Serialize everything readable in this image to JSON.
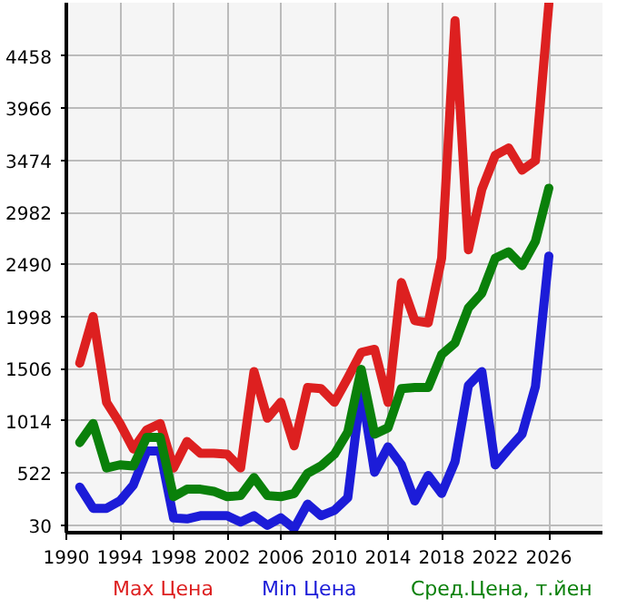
{
  "chart_data": {
    "type": "line",
    "x": [
      1991,
      1992,
      1993,
      1994,
      1995,
      1996,
      1997,
      1998,
      1999,
      2000,
      2001,
      2002,
      2003,
      2004,
      2005,
      2006,
      2007,
      2008,
      2009,
      2010,
      2011,
      2012,
      2013,
      2014,
      2015,
      2016,
      2017,
      2018,
      2019,
      2020,
      2021,
      2022,
      2023,
      2024,
      2025,
      2026
    ],
    "series": [
      {
        "name": "Max Цена",
        "color": "#dd2020",
        "values": [
          1560,
          2000,
          1190,
          990,
          750,
          930,
          990,
          570,
          820,
          710,
          710,
          700,
          570,
          1480,
          1040,
          1190,
          780,
          1330,
          1320,
          1190,
          1420,
          1660,
          1690,
          1190,
          2320,
          1960,
          1940,
          2550,
          4790,
          2630,
          3200,
          3520,
          3590,
          3380,
          3470,
          4950
        ]
      },
      {
        "name": "Min Цена",
        "color": "#1c1cd8",
        "values": [
          390,
          190,
          190,
          260,
          410,
          730,
          730,
          100,
          90,
          120,
          120,
          120,
          60,
          120,
          30,
          100,
          0,
          230,
          120,
          170,
          290,
          1320,
          530,
          770,
          600,
          260,
          500,
          330,
          630,
          1350,
          1480,
          600,
          750,
          890,
          1340,
          2570
        ]
      },
      {
        "name": "Сред.Цена, т.йен",
        "color": "#0a800a",
        "values": [
          810,
          990,
          570,
          600,
          590,
          860,
          860,
          300,
          370,
          370,
          350,
          300,
          310,
          480,
          310,
          300,
          330,
          520,
          590,
          700,
          910,
          1500,
          890,
          950,
          1320,
          1330,
          1330,
          1640,
          1750,
          2080,
          2220,
          2550,
          2610,
          2480,
          2710,
          3210
        ]
      }
    ],
    "xlim": [
      1990,
      2030
    ],
    "xticks": [
      1990,
      1994,
      1998,
      2002,
      2006,
      2010,
      2014,
      2018,
      2022,
      2026
    ],
    "ylim": [
      -40,
      4960
    ],
    "yticks": [
      30,
      522,
      1014,
      1506,
      1998,
      2490,
      2982,
      3474,
      3966,
      4458
    ],
    "grid": true,
    "legend": "bottom",
    "marker": "none",
    "line_style": "solid"
  }
}
